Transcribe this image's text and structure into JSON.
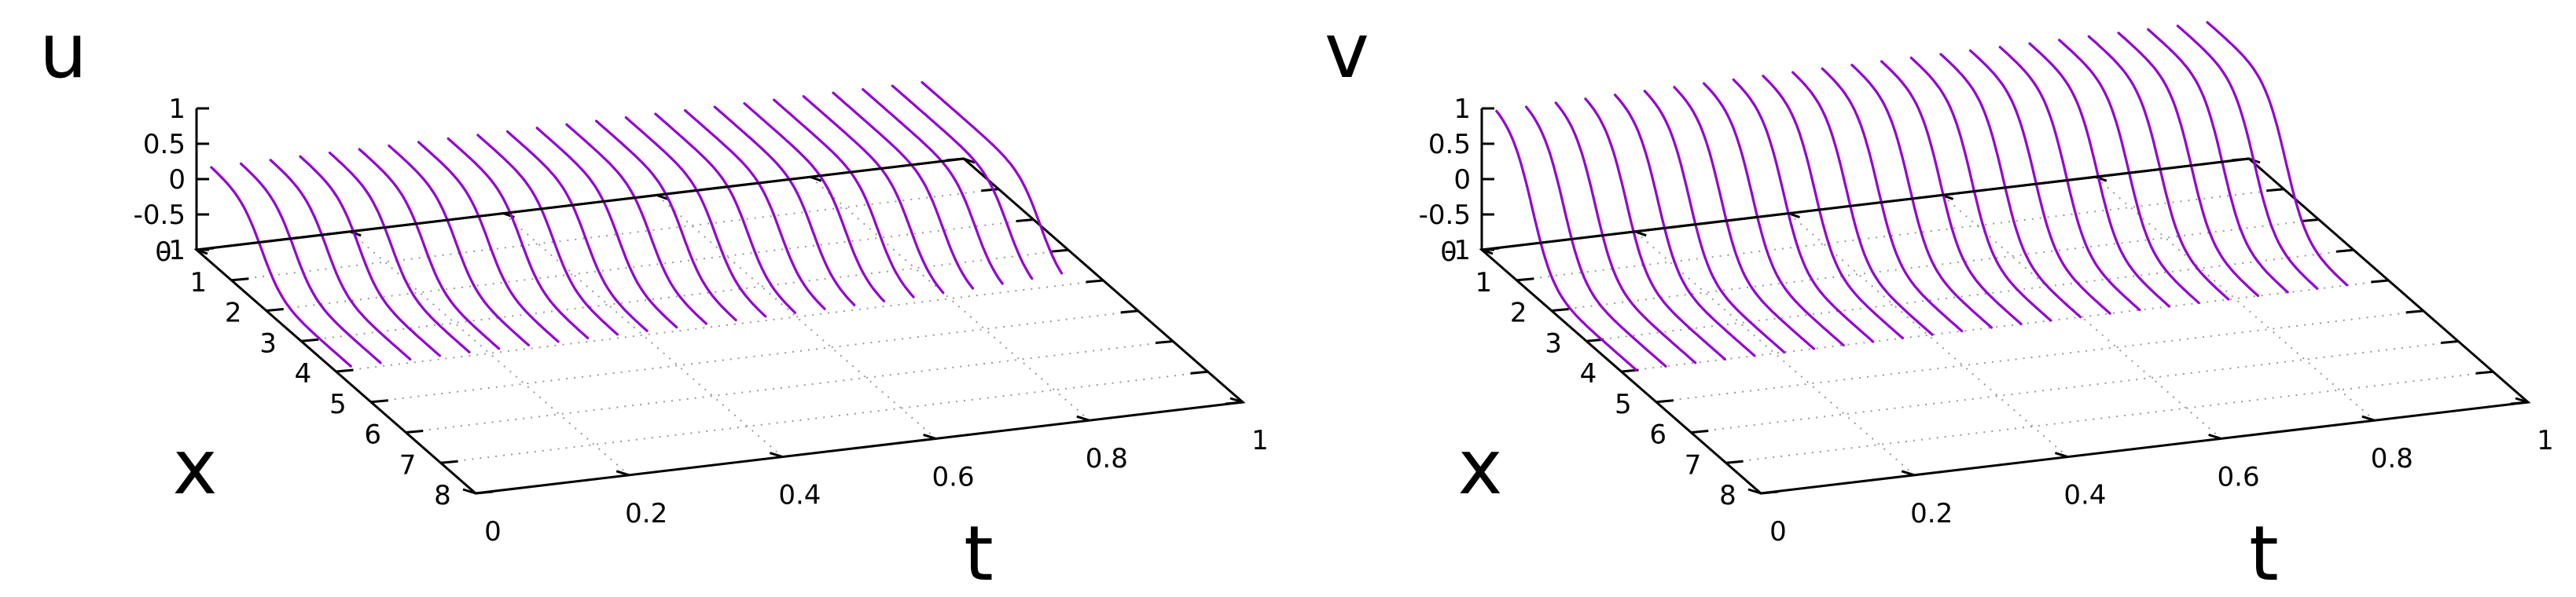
{
  "chart_data": [
    {
      "type": "surface",
      "variable_label": "u",
      "xlabel": "t",
      "ylabel": "x",
      "t_ticks": [
        "0",
        "0.2",
        "0.4",
        "0.6",
        "0.8",
        "1"
      ],
      "x_ticks": [
        "0",
        "1",
        "2",
        "3",
        "4",
        "5",
        "6",
        "7",
        "8"
      ],
      "z_ticks": [
        "1",
        "0.5",
        "0",
        "-0.5",
        "-1"
      ],
      "t_range": [
        0,
        1
      ],
      "x_range": [
        0,
        8
      ],
      "z_range": [
        -1,
        1
      ],
      "x_domain": [
        0,
        4
      ],
      "curve_count": 25,
      "initial_profile": "tanh",
      "profile": {
        "left_value": 0.15,
        "right_value": -0.95,
        "front_x0": 1.4,
        "front_speed": 0.95,
        "width": 0.6
      },
      "grid": true,
      "line_color": "#9400d3"
    },
    {
      "type": "surface",
      "variable_label": "v",
      "xlabel": "t",
      "ylabel": "x",
      "t_ticks": [
        "0",
        "0.2",
        "0.4",
        "0.6",
        "0.8",
        "1"
      ],
      "x_ticks": [
        "0",
        "1",
        "2",
        "3",
        "4",
        "5",
        "6",
        "7",
        "8"
      ],
      "z_ticks": [
        "1",
        "0.5",
        "0",
        "-0.5",
        "-1"
      ],
      "t_range": [
        0,
        1
      ],
      "x_range": [
        0,
        8
      ],
      "z_range": [
        -1,
        1
      ],
      "x_domain": [
        0,
        4
      ],
      "curve_count": 25,
      "initial_profile": "tanh",
      "profile": {
        "left_value": 1.0,
        "right_value": -1.0,
        "front_x0": 1.0,
        "front_speed": 0.6,
        "width": 0.6
      },
      "grid": true,
      "line_color": "#9400d3"
    }
  ]
}
